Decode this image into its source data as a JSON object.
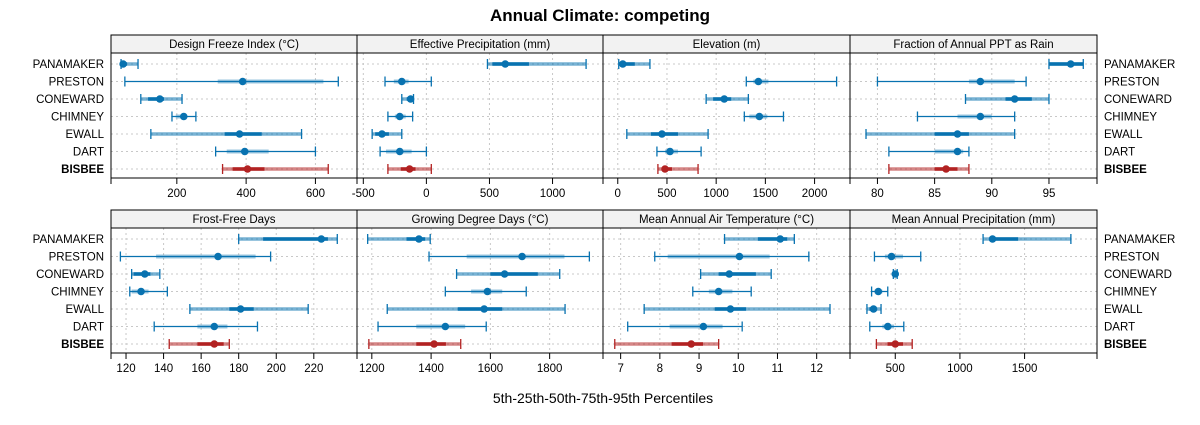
{
  "chart_data": {
    "type": "dot-interval",
    "title": "Annual Climate: competing",
    "xlabel": "5th-25th-50th-75th-95th Percentiles",
    "percentiles": [
      "5th",
      "25th",
      "50th",
      "75th",
      "95th"
    ],
    "categories": [
      "PANAMAKER",
      "PRESTON",
      "CONEWARD",
      "CHIMNEY",
      "EWALL",
      "DART",
      "BISBEE"
    ],
    "highlight_category": "BISBEE",
    "colors": {
      "default": "#0872B0",
      "highlight": "#B22222",
      "grid": "#C8C8C8",
      "strip": "#F2F2F2"
    },
    "grid": true,
    "panels": [
      {
        "title": "Design Freeze Index (°C)",
        "xlim": [
          10,
          720
        ],
        "ticks": [
          200,
          400,
          600
        ],
        "values": [
          [
            39,
            39,
            45,
            56,
            88
          ],
          [
            50,
            318,
            390,
            623,
            666
          ],
          [
            96,
            117,
            151,
            163,
            215
          ],
          [
            186,
            197,
            220,
            229,
            255
          ],
          [
            125,
            338,
            381,
            445,
            560
          ],
          [
            312,
            344,
            396,
            465,
            600
          ],
          [
            332,
            361,
            404,
            453,
            637
          ]
        ]
      },
      {
        "title": "Effective Precipitation (mm)",
        "xlim": [
          -550,
          1400
        ],
        "ticks": [
          -500,
          0,
          500,
          1000
        ],
        "values": [
          [
            484,
            523,
            625,
            813,
            1266
          ],
          [
            -328,
            -258,
            -195,
            -141,
            39
          ],
          [
            -195,
            -156,
            -125,
            -109,
            -102
          ],
          [
            -305,
            -250,
            -211,
            -164,
            -109
          ],
          [
            -430,
            -406,
            -352,
            -297,
            -195
          ],
          [
            -367,
            -320,
            -211,
            -117,
            0
          ],
          [
            -305,
            -203,
            -133,
            -86,
            39
          ]
        ]
      },
      {
        "title": "Elevation (m)",
        "xlim": [
          -150,
          2360
        ],
        "ticks": [
          0,
          500,
          1000,
          1500,
          2000
        ],
        "values": [
          [
            10,
            20,
            51,
            173,
            327
          ],
          [
            1306,
            1378,
            1429,
            1531,
            2224
          ],
          [
            898,
            969,
            1082,
            1153,
            1327
          ],
          [
            1286,
            1337,
            1439,
            1520,
            1684
          ],
          [
            92,
            337,
            449,
            612,
            918
          ],
          [
            398,
            480,
            531,
            612,
            847
          ],
          [
            408,
            449,
            480,
            551,
            816
          ]
        ]
      },
      {
        "title": "Fraction of Annual PPT as Rain",
        "xlim": [
          77.6,
          99.2
        ],
        "ticks": [
          80,
          85,
          90,
          95
        ],
        "values": [
          [
            95,
            95,
            96.9,
            98,
            98
          ],
          [
            80,
            88,
            89,
            92,
            93
          ],
          [
            87.7,
            91.2,
            92,
            93.5,
            95
          ],
          [
            83.5,
            87,
            89,
            90,
            92
          ],
          [
            79,
            85,
            87,
            88,
            92
          ],
          [
            81,
            85,
            87,
            87.5,
            88
          ],
          [
            81,
            85,
            86,
            87,
            88
          ]
        ]
      },
      {
        "title": "Frost-Free Days",
        "xlim": [
          112,
          243
        ],
        "ticks": [
          120,
          140,
          160,
          180,
          200,
          220
        ],
        "values": [
          [
            180,
            193,
            224,
            227.5,
            232.5
          ],
          [
            117,
            136,
            169,
            189,
            197
          ],
          [
            123,
            124,
            130,
            133,
            138
          ],
          [
            122,
            123,
            128,
            132,
            142
          ],
          [
            154,
            175,
            181,
            188,
            217
          ],
          [
            135,
            158,
            167,
            174,
            190
          ],
          [
            143,
            158,
            167,
            172,
            175
          ]
        ]
      },
      {
        "title": "Growing Degree Days (°C)",
        "xlim": [
          1150,
          1980
        ],
        "ticks": [
          1200,
          1400,
          1600,
          1800
        ],
        "values": [
          [
            1186,
            1317,
            1359,
            1380,
            1397
          ],
          [
            1393,
            1520,
            1707,
            1850,
            1934
          ],
          [
            1486,
            1600,
            1648,
            1760,
            1834
          ],
          [
            1448,
            1535,
            1590,
            1640,
            1721
          ],
          [
            1252,
            1490,
            1579,
            1640,
            1852
          ],
          [
            1221,
            1350,
            1448,
            1515,
            1586
          ],
          [
            1190,
            1350,
            1410,
            1450,
            1500
          ]
        ]
      },
      {
        "title": "Mean Annual Air Temperature (°C)",
        "xlim": [
          6.55,
          12.85
        ],
        "ticks": [
          7,
          8,
          9,
          10,
          11,
          12
        ],
        "values": [
          [
            9.65,
            10.5,
            11.07,
            11.25,
            11.43
          ],
          [
            7.87,
            8.2,
            10.03,
            10.8,
            11.8
          ],
          [
            9.04,
            9.5,
            9.77,
            10.45,
            10.84
          ],
          [
            8.84,
            9.25,
            9.5,
            9.85,
            10.33
          ],
          [
            7.6,
            9.4,
            9.8,
            10.2,
            12.34
          ],
          [
            7.18,
            8.25,
            9.11,
            9.6,
            10.1
          ],
          [
            6.85,
            8.3,
            8.8,
            9.1,
            9.5
          ]
        ]
      },
      {
        "title": "Mean Annual Precipitation (mm)",
        "xlim": [
          150,
          2060
        ],
        "ticks": [
          500,
          1000,
          1500
        ],
        "values": [
          [
            1179,
            1230,
            1252,
            1450,
            1858
          ],
          [
            339,
            420,
            471,
            560,
            697
          ],
          [
            485,
            490,
            500,
            507,
            515
          ],
          [
            317,
            340,
            369,
            400,
            442
          ],
          [
            281,
            300,
            332,
            350,
            390
          ],
          [
            303,
            400,
            442,
            490,
            566
          ],
          [
            354,
            440,
            500,
            560,
            631
          ]
        ]
      }
    ]
  }
}
